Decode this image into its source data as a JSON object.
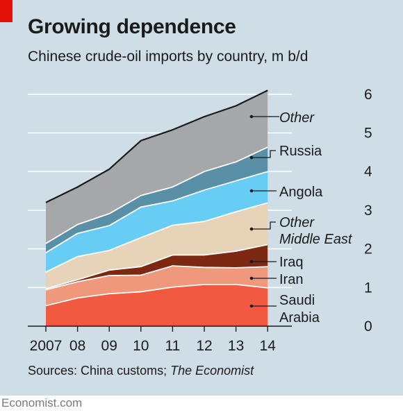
{
  "header": {
    "title": "Growing dependence",
    "subtitle": "Chinese crude-oil imports by country, m b/d"
  },
  "footer": {
    "source_prefix": "Sources: China customs;",
    "source_italic": "The Economist",
    "brand": "Economist.com"
  },
  "colors": {
    "background": "#cfdde6",
    "accent": "#e3120b",
    "saudi_arabia": "#f15a41",
    "iran": "#f0987c",
    "iraq": "#7d2812",
    "other_middle_east": "#e6d3b8",
    "angola": "#67cdf4",
    "russia": "#5a8fa8",
    "other": "#a6a7aa"
  },
  "chart_data": {
    "type": "area",
    "stacked": true,
    "x": [
      "2007",
      "08",
      "09",
      "10",
      "11",
      "12",
      "13",
      "14"
    ],
    "ylim": [
      0,
      6
    ],
    "yticks": [
      0,
      1,
      2,
      3,
      4,
      5,
      6
    ],
    "y_axis_side": "right",
    "grid": true,
    "title": "Growing dependence",
    "subtitle": "Chinese crude-oil imports by country, m b/d",
    "series": [
      {
        "name": "Saudi Arabia",
        "label_lines": [
          "Saudi",
          "Arabia"
        ],
        "italic": false,
        "color": "#f15a41",
        "values": [
          0.53,
          0.73,
          0.84,
          0.89,
          1.01,
          1.08,
          1.08,
          0.99
        ]
      },
      {
        "name": "Iran",
        "label_lines": [
          "Iran"
        ],
        "italic": false,
        "color": "#f0987c",
        "values": [
          0.41,
          0.42,
          0.47,
          0.43,
          0.55,
          0.44,
          0.43,
          0.55
        ]
      },
      {
        "name": "Iraq",
        "label_lines": [
          "Iraq"
        ],
        "italic": false,
        "color": "#7d2812",
        "values": [
          0.03,
          0.05,
          0.14,
          0.22,
          0.28,
          0.32,
          0.43,
          0.57
        ]
      },
      {
        "name": "Other Middle East",
        "label_lines": [
          "Other",
          "Middle East"
        ],
        "italic": true,
        "color": "#e6d3b8",
        "values": [
          0.43,
          0.6,
          0.51,
          0.75,
          0.77,
          0.87,
          1.02,
          1.08
        ]
      },
      {
        "name": "Angola",
        "label_lines": [
          "Angola"
        ],
        "italic": false,
        "color": "#67cdf4",
        "values": [
          0.5,
          0.6,
          0.64,
          0.79,
          0.63,
          0.81,
          0.8,
          0.81
        ]
      },
      {
        "name": "Russia",
        "label_lines": [
          "Russia"
        ],
        "italic": false,
        "color": "#5a8fa8",
        "values": [
          0.24,
          0.23,
          0.31,
          0.3,
          0.36,
          0.48,
          0.49,
          0.63
        ]
      },
      {
        "name": "Other",
        "label_lines": [
          "Other"
        ],
        "italic": true,
        "color": "#a6a7aa",
        "values": [
          1.06,
          0.97,
          1.15,
          1.42,
          1.48,
          1.42,
          1.45,
          1.47
        ]
      }
    ]
  }
}
